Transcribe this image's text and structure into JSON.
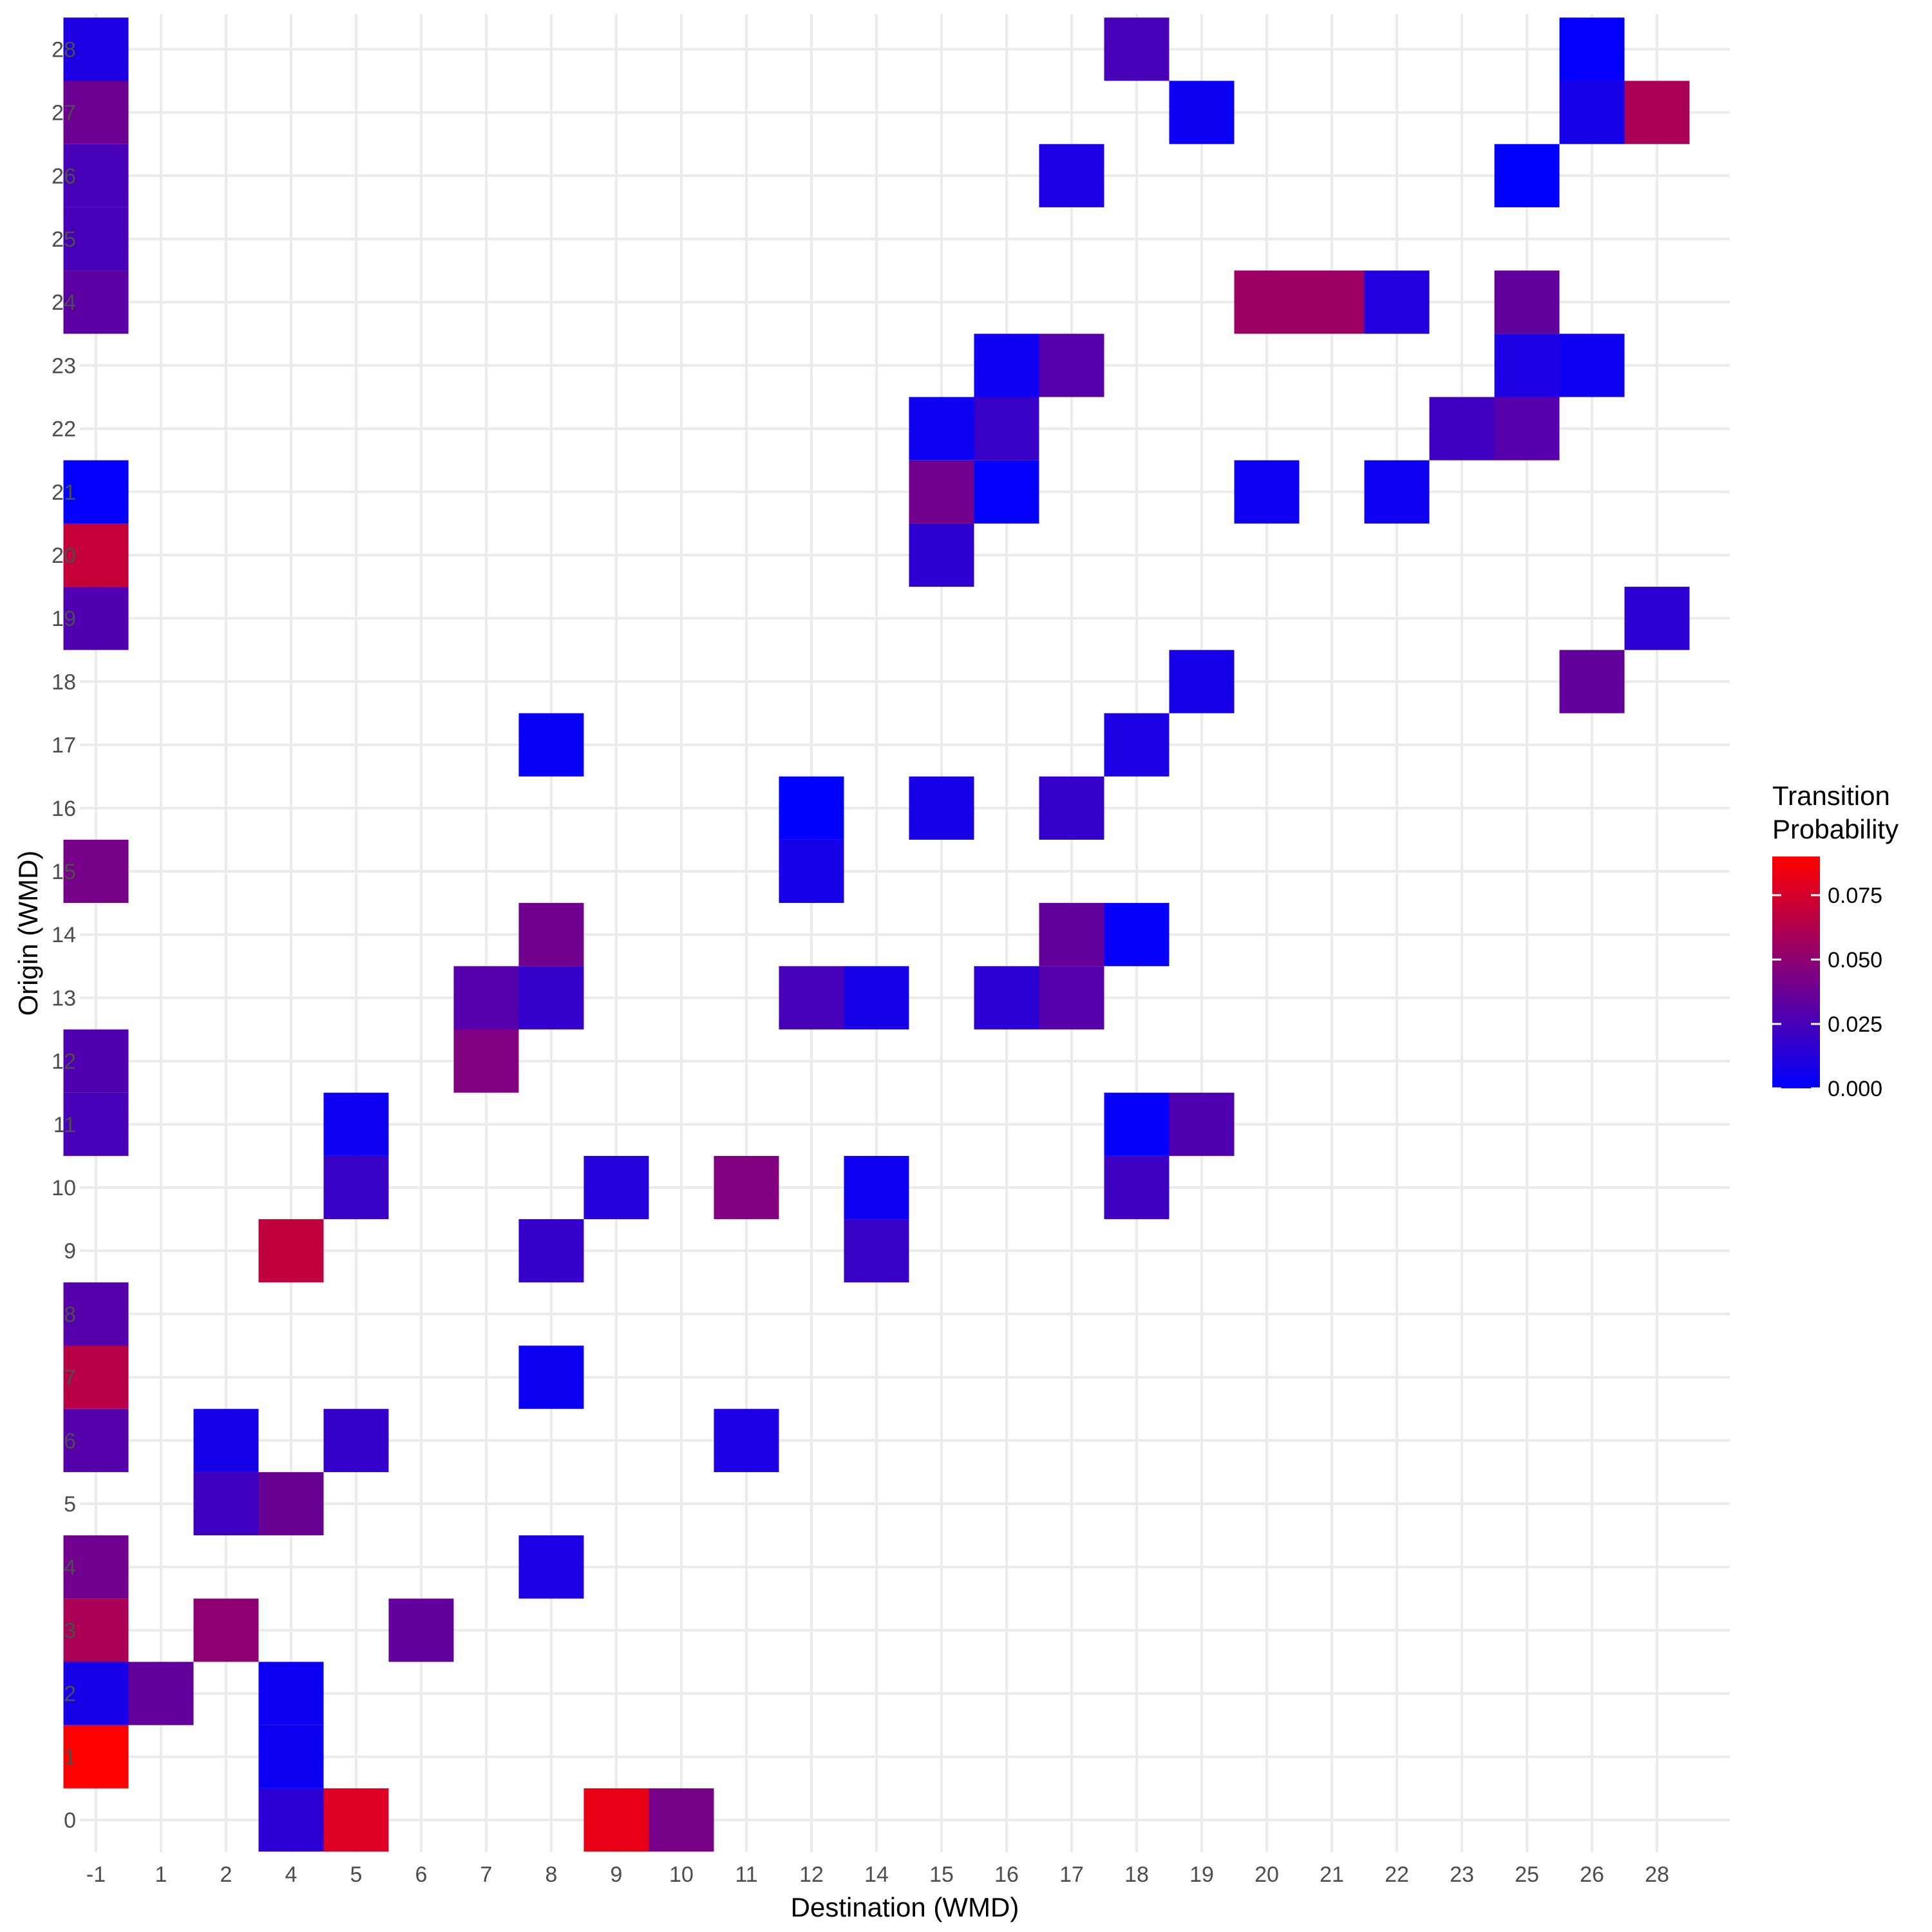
{
  "chart_data": {
    "type": "heatmap",
    "xlabel": "Destination (WMD)",
    "ylabel": "Origin (WMD)",
    "x_categories": [
      "-1",
      "1",
      "2",
      "4",
      "5",
      "6",
      "7",
      "8",
      "9",
      "10",
      "11",
      "12",
      "14",
      "15",
      "16",
      "17",
      "18",
      "19",
      "20",
      "21",
      "22",
      "23",
      "25",
      "26",
      "28"
    ],
    "y_categories": [
      "0",
      "1",
      "2",
      "3",
      "4",
      "5",
      "6",
      "7",
      "8",
      "9",
      "10",
      "11",
      "12",
      "13",
      "14",
      "15",
      "16",
      "17",
      "18",
      "19",
      "20",
      "21",
      "22",
      "23",
      "24",
      "25",
      "26",
      "27",
      "28"
    ],
    "legend": {
      "title_lines": [
        "Transition",
        "Probability"
      ],
      "ticks": [
        "0.000",
        "0.025",
        "0.050",
        "0.075"
      ],
      "tick_values": [
        0,
        0.025,
        0.05,
        0.075
      ],
      "range": [
        0,
        0.09
      ],
      "placement": "right"
    },
    "color_scale": {
      "low": "#0000ff",
      "high": "#ff0000"
    },
    "grid": true,
    "cells": [
      {
        "x": "4",
        "y": "0",
        "v": 0.015
      },
      {
        "x": "5",
        "y": "0",
        "v": 0.078
      },
      {
        "x": "9",
        "y": "0",
        "v": 0.082
      },
      {
        "x": "10",
        "y": "0",
        "v": 0.042
      },
      {
        "x": "-1",
        "y": "1",
        "v": 0.09
      },
      {
        "x": "4",
        "y": "1",
        "v": 0.004
      },
      {
        "x": "-1",
        "y": "2",
        "v": 0.008
      },
      {
        "x": "1",
        "y": "2",
        "v": 0.035
      },
      {
        "x": "4",
        "y": "2",
        "v": 0.004
      },
      {
        "x": "-1",
        "y": "3",
        "v": 0.06
      },
      {
        "x": "2",
        "y": "3",
        "v": 0.05
      },
      {
        "x": "6",
        "y": "3",
        "v": 0.035
      },
      {
        "x": "-1",
        "y": "4",
        "v": 0.04
      },
      {
        "x": "8",
        "y": "4",
        "v": 0.01
      },
      {
        "x": "2",
        "y": "5",
        "v": 0.022
      },
      {
        "x": "4",
        "y": "5",
        "v": 0.037
      },
      {
        "x": "-1",
        "y": "6",
        "v": 0.03
      },
      {
        "x": "2",
        "y": "6",
        "v": 0.008
      },
      {
        "x": "5",
        "y": "6",
        "v": 0.018
      },
      {
        "x": "11",
        "y": "6",
        "v": 0.01
      },
      {
        "x": "-1",
        "y": "7",
        "v": 0.065
      },
      {
        "x": "8",
        "y": "7",
        "v": 0.004
      },
      {
        "x": "-1",
        "y": "8",
        "v": 0.03
      },
      {
        "x": "4",
        "y": "9",
        "v": 0.068
      },
      {
        "x": "8",
        "y": "9",
        "v": 0.018
      },
      {
        "x": "14",
        "y": "9",
        "v": 0.02
      },
      {
        "x": "5",
        "y": "10",
        "v": 0.02
      },
      {
        "x": "9",
        "y": "10",
        "v": 0.013
      },
      {
        "x": "11",
        "y": "10",
        "v": 0.045
      },
      {
        "x": "14",
        "y": "10",
        "v": 0.005
      },
      {
        "x": "18",
        "y": "10",
        "v": 0.022
      },
      {
        "x": "-1",
        "y": "11",
        "v": 0.025
      },
      {
        "x": "5",
        "y": "11",
        "v": 0.005
      },
      {
        "x": "18",
        "y": "11",
        "v": 0.002
      },
      {
        "x": "19",
        "y": "11",
        "v": 0.028
      },
      {
        "x": "-1",
        "y": "12",
        "v": 0.028
      },
      {
        "x": "7",
        "y": "12",
        "v": 0.045
      },
      {
        "x": "7",
        "y": "13",
        "v": 0.03
      },
      {
        "x": "8",
        "y": "13",
        "v": 0.018
      },
      {
        "x": "12",
        "y": "13",
        "v": 0.025
      },
      {
        "x": "14",
        "y": "13",
        "v": 0.008
      },
      {
        "x": "16",
        "y": "13",
        "v": 0.015
      },
      {
        "x": "17",
        "y": "13",
        "v": 0.03
      },
      {
        "x": "8",
        "y": "14",
        "v": 0.04
      },
      {
        "x": "17",
        "y": "14",
        "v": 0.035
      },
      {
        "x": "18",
        "y": "14",
        "v": 0.002
      },
      {
        "x": "-1",
        "y": "15",
        "v": 0.042
      },
      {
        "x": "12",
        "y": "15",
        "v": 0.008
      },
      {
        "x": "12",
        "y": "16",
        "v": 0.0
      },
      {
        "x": "15",
        "y": "16",
        "v": 0.008
      },
      {
        "x": "17",
        "y": "16",
        "v": 0.018
      },
      {
        "x": "8",
        "y": "17",
        "v": 0.003
      },
      {
        "x": "18",
        "y": "17",
        "v": 0.01
      },
      {
        "x": "19",
        "y": "18",
        "v": 0.008
      },
      {
        "x": "26",
        "y": "18",
        "v": 0.035
      },
      {
        "x": "-1",
        "y": "19",
        "v": 0.028
      },
      {
        "x": "28",
        "y": "19",
        "v": 0.015
      },
      {
        "x": "-1",
        "y": "20",
        "v": 0.07
      },
      {
        "x": "15",
        "y": "20",
        "v": 0.016
      },
      {
        "x": "-1",
        "y": "21",
        "v": 0.001
      },
      {
        "x": "15",
        "y": "21",
        "v": 0.04
      },
      {
        "x": "16",
        "y": "21",
        "v": 0.001
      },
      {
        "x": "20",
        "y": "21",
        "v": 0.005
      },
      {
        "x": "22",
        "y": "21",
        "v": 0.005
      },
      {
        "x": "15",
        "y": "22",
        "v": 0.005
      },
      {
        "x": "16",
        "y": "22",
        "v": 0.02
      },
      {
        "x": "23",
        "y": "22",
        "v": 0.022
      },
      {
        "x": "25",
        "y": "22",
        "v": 0.03
      },
      {
        "x": "16",
        "y": "23",
        "v": 0.005
      },
      {
        "x": "17",
        "y": "23",
        "v": 0.03
      },
      {
        "x": "25",
        "y": "23",
        "v": 0.01
      },
      {
        "x": "26",
        "y": "23",
        "v": 0.005
      },
      {
        "x": "-1",
        "y": "24",
        "v": 0.032
      },
      {
        "x": "20",
        "y": "24",
        "v": 0.055
      },
      {
        "x": "21",
        "y": "24",
        "v": 0.055
      },
      {
        "x": "22",
        "y": "24",
        "v": 0.012
      },
      {
        "x": "25",
        "y": "24",
        "v": 0.035
      },
      {
        "x": "-1",
        "y": "25",
        "v": 0.025
      },
      {
        "x": "-1",
        "y": "26",
        "v": 0.025
      },
      {
        "x": "17",
        "y": "26",
        "v": 0.01
      },
      {
        "x": "25",
        "y": "26",
        "v": 0.0
      },
      {
        "x": "-1",
        "y": "27",
        "v": 0.038
      },
      {
        "x": "19",
        "y": "27",
        "v": 0.004
      },
      {
        "x": "26",
        "y": "27",
        "v": 0.008
      },
      {
        "x": "28",
        "y": "27",
        "v": 0.06
      },
      {
        "x": "-1",
        "y": "28",
        "v": 0.01
      },
      {
        "x": "18",
        "y": "28",
        "v": 0.025
      },
      {
        "x": "26",
        "y": "28",
        "v": 0.001
      }
    ]
  }
}
